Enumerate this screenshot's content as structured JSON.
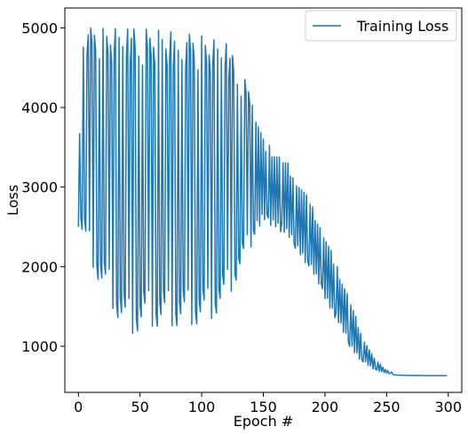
{
  "chart_data": {
    "type": "line",
    "title": "",
    "xlabel": "Epoch #",
    "ylabel": "Loss",
    "xlim": [
      -11,
      311
    ],
    "ylim": [
      420,
      5250
    ],
    "xticks": [
      0,
      50,
      100,
      150,
      200,
      250,
      300
    ],
    "yticks": [
      1000,
      2000,
      3000,
      4000,
      5000
    ],
    "grid": false,
    "legend": {
      "position": "top-right",
      "entries": [
        "Training Loss"
      ]
    },
    "series": [
      {
        "name": "Training Loss",
        "color": "#1f77b4",
        "description": "Oscillating loss: alternating high/low values per epoch, upper envelope ~5000 until epoch ~60 then decays; lower envelope ~2200 at epoch 0 dipping to ~1150 around epoch 40 then rising to ~2600 near epoch 150; both converge and decay to ~630 by epoch 300.",
        "x_start": 0,
        "x_end": 299,
        "keypoints": {
          "upper_envelope": [
            [
              0,
              2500
            ],
            [
              2,
              5000
            ],
            [
              60,
              4980
            ],
            [
              100,
              4900
            ],
            [
              120,
              4800
            ],
            [
              140,
              4200
            ],
            [
              150,
              3600
            ],
            [
              160,
              3450
            ],
            [
              170,
              3300
            ],
            [
              180,
              3050
            ],
            [
              190,
              2750
            ],
            [
              200,
              2400
            ],
            [
              210,
              2000
            ],
            [
              220,
              1600
            ],
            [
              230,
              1150
            ],
            [
              240,
              850
            ],
            [
              250,
              700
            ],
            [
              260,
              650
            ],
            [
              280,
              630
            ],
            [
              299,
              630
            ]
          ],
          "lower_envelope": [
            [
              0,
              2500
            ],
            [
              7,
              2180
            ],
            [
              20,
              1690
            ],
            [
              30,
              1420
            ],
            [
              40,
              1130
            ],
            [
              55,
              1250
            ],
            [
              70,
              1250
            ],
            [
              90,
              1270
            ],
            [
              105,
              1300
            ],
            [
              120,
              1550
            ],
            [
              130,
              1900
            ],
            [
              140,
              2250
            ],
            [
              150,
              2550
            ],
            [
              160,
              2500
            ],
            [
              170,
              2350
            ],
            [
              180,
              2150
            ],
            [
              190,
              1900
            ],
            [
              200,
              1600
            ],
            [
              210,
              1300
            ],
            [
              220,
              1000
            ],
            [
              230,
              800
            ],
            [
              240,
              700
            ],
            [
              250,
              660
            ],
            [
              260,
              640
            ],
            [
              280,
              630
            ],
            [
              299,
              630
            ]
          ]
        }
      }
    ]
  }
}
